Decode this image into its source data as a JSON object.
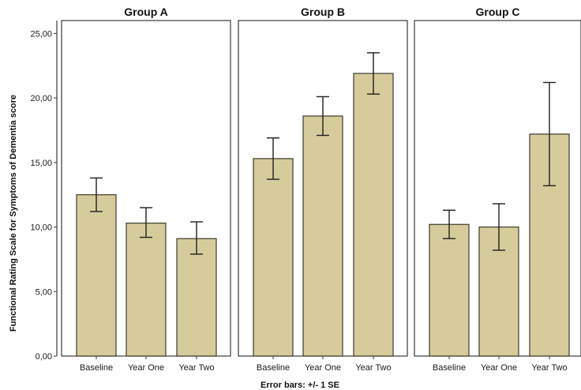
{
  "chart_data": {
    "type": "bar",
    "ylabel": "Functional Rating Scale for  Symptoms of Dementia score",
    "xlabel": "Error bars: +/- 1 SE",
    "ylim": [
      0,
      26
    ],
    "yticks": [
      0,
      5,
      10,
      15,
      20,
      25
    ],
    "ytick_labels": [
      "0,00",
      "5,00",
      "10,00",
      "15,00",
      "20,00",
      "25,00"
    ],
    "grid": false,
    "categories": [
      "Baseline",
      "Year One",
      "Year Two"
    ],
    "panels": [
      {
        "title": "Group A",
        "values": [
          12.5,
          10.3,
          9.1
        ],
        "se_low": [
          11.2,
          9.2,
          7.9
        ],
        "se_high": [
          13.8,
          11.5,
          10.4
        ]
      },
      {
        "title": "Group B",
        "values": [
          15.3,
          18.6,
          21.9
        ],
        "se_low": [
          13.7,
          17.1,
          20.3
        ],
        "se_high": [
          16.9,
          20.1,
          23.5
        ]
      },
      {
        "title": "Group C",
        "values": [
          10.2,
          10.0,
          17.2
        ],
        "se_low": [
          9.1,
          8.2,
          13.2
        ],
        "se_high": [
          11.3,
          11.8,
          21.2
        ]
      }
    ],
    "colors": {
      "bar_fill": "#d6cc9b",
      "bar_stroke": "#3b3b2e",
      "error_bar": "#1f1f1f"
    }
  }
}
